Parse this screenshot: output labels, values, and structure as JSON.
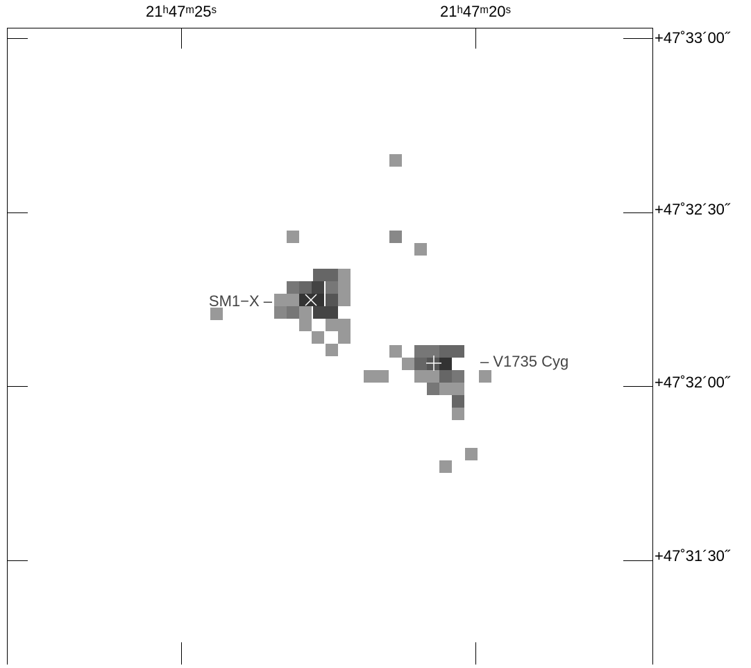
{
  "ra_ticks": [
    "21ʰ47ᵐ25ˢ",
    "21ʰ47ᵐ20ˢ"
  ],
  "dec_ticks": [
    "+47˚33´00˝",
    "+47˚32´30˝",
    "+47˚32´00˝",
    "+47˚31´30˝"
  ],
  "sources": [
    "SM1−X –",
    "– V1735 Cyg"
  ]
}
